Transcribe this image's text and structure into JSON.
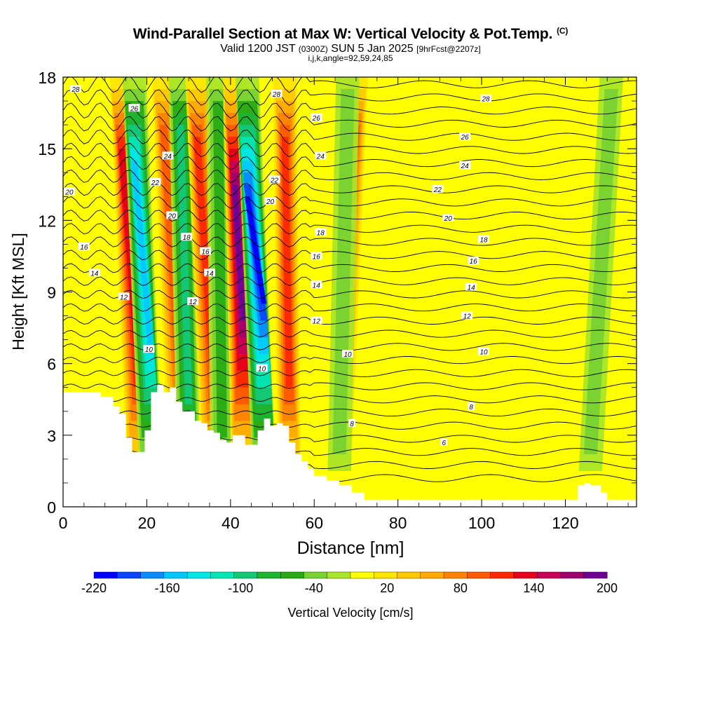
{
  "header": {
    "title": "Wind-Parallel Section at Max W: Vertical Velocity & Pot.Temp.",
    "copyright": "(C)",
    "valid_main": "Valid 1200 JST",
    "valid_utc": "(0300Z)",
    "valid_date": "SUN 5 Jan 2025",
    "forecast": "[9hrFcst@2207z]",
    "indices": "i,j,k,angle=92,59,24,85"
  },
  "chart_data": {
    "type": "heatmap",
    "xlabel": "Distance [nm]",
    "ylabel": "Height [Kft MSL]",
    "xlim": [
      0,
      137
    ],
    "ylim": [
      0,
      18
    ],
    "x_ticks": [
      0,
      20,
      40,
      60,
      80,
      100,
      120
    ],
    "y_ticks": [
      0,
      3,
      6,
      9,
      12,
      15,
      18
    ],
    "colorbar": {
      "label": "Vertical Velocity [cm/s]",
      "min": -220,
      "max": 200,
      "step": 20,
      "tick_labels": [
        -220,
        -160,
        -100,
        -40,
        20,
        80,
        140,
        200
      ],
      "colors": [
        "#0000ff",
        "#0a46ff",
        "#0a8cff",
        "#00c8ff",
        "#00e6e6",
        "#00e6b4",
        "#14c878",
        "#1eb432",
        "#28aa14",
        "#78d232",
        "#aae628",
        "#ffff00",
        "#ffe600",
        "#ffc800",
        "#ffaa00",
        "#ff8200",
        "#ff5a00",
        "#ff2800",
        "#e6001e",
        "#c8005a",
        "#a0006e",
        "#6e0096"
      ]
    },
    "vertical_velocity_features": [
      {
        "x": 15,
        "max": 140,
        "x_top": 14,
        "x_bottom": 18
      },
      {
        "x": 19,
        "max": -160,
        "x_top": 17,
        "x_bottom": 21
      },
      {
        "x": 26,
        "max": 100,
        "x_top": 24,
        "x_bottom": 28
      },
      {
        "x": 29,
        "max": -100,
        "x_top": 28,
        "x_bottom": 30
      },
      {
        "x": 33,
        "max": 120,
        "x_top": 32,
        "x_bottom": 36
      },
      {
        "x": 38,
        "max": -60,
        "x_top": 37,
        "x_bottom": 38
      },
      {
        "x": 41,
        "max": 200,
        "x_top": 41,
        "x_bottom": 43
      },
      {
        "x": 45,
        "max": -220,
        "x_top": 44,
        "x_bottom": 48
      },
      {
        "x": 53,
        "max": 120,
        "x_top": 53,
        "x_bottom": 54
      },
      {
        "x": 70,
        "max": 100,
        "x_top": 70,
        "x_bottom": 66
      },
      {
        "x": 67,
        "max": -40,
        "x_top": 68,
        "x_bottom": 66
      },
      {
        "x": 128,
        "max": -40,
        "x_top": 131,
        "x_bottom": 126
      }
    ],
    "terrain_height_kft": {
      "x": [
        0,
        7.5,
        9,
        12,
        13.5,
        15,
        16.5,
        18,
        19.5,
        21,
        22.5,
        24,
        25.5,
        27,
        28.5,
        30,
        31.5,
        33,
        34.5,
        36,
        37.5,
        39,
        40.5,
        42,
        43.5,
        45,
        46.5,
        48,
        49.5,
        51,
        52.5,
        54,
        55.5,
        57,
        58.5,
        60,
        63,
        66,
        69,
        72,
        75,
        80,
        90,
        100,
        110,
        120,
        123,
        124.5,
        126,
        128.5,
        130,
        137
      ],
      "y": [
        4.8,
        4.8,
        4.6,
        4.2,
        3.9,
        2.9,
        2.3,
        2.3,
        3.2,
        4.8,
        5.1,
        4.8,
        5.0,
        4.4,
        4.0,
        4.0,
        3.6,
        3.5,
        3.2,
        3.1,
        2.8,
        2.7,
        3.0,
        3.0,
        2.6,
        2.6,
        3.2,
        3.7,
        3.4,
        3.5,
        3.4,
        2.7,
        2.2,
        1.9,
        1.6,
        1.3,
        1.1,
        0.9,
        0.6,
        0.3,
        0.3,
        0.3,
        0.3,
        0.3,
        0.3,
        0.3,
        0.9,
        1.0,
        0.9,
        0.6,
        0.3,
        0.3
      ]
    },
    "contour_labels": [
      {
        "x": 3,
        "y": 17.5,
        "text": "28"
      },
      {
        "x": 17,
        "y": 16.7,
        "text": "26"
      },
      {
        "x": 25,
        "y": 14.7,
        "text": "24"
      },
      {
        "x": 22,
        "y": 13.6,
        "text": "22"
      },
      {
        "x": 1.5,
        "y": 13.2,
        "text": "20"
      },
      {
        "x": 26,
        "y": 12.2,
        "text": "20"
      },
      {
        "x": 29.5,
        "y": 11.3,
        "text": "18"
      },
      {
        "x": 5,
        "y": 10.9,
        "text": "16"
      },
      {
        "x": 34,
        "y": 10.7,
        "text": "16"
      },
      {
        "x": 7.5,
        "y": 9.8,
        "text": "14"
      },
      {
        "x": 35,
        "y": 9.8,
        "text": "14"
      },
      {
        "x": 14.5,
        "y": 8.8,
        "text": "12"
      },
      {
        "x": 31,
        "y": 8.6,
        "text": "12"
      },
      {
        "x": 20.5,
        "y": 6.6,
        "text": "10"
      },
      {
        "x": 47.5,
        "y": 5.8,
        "text": "10"
      },
      {
        "x": 51,
        "y": 17.3,
        "text": "28"
      },
      {
        "x": 60.5,
        "y": 16.3,
        "text": "26"
      },
      {
        "x": 61.5,
        "y": 14.7,
        "text": "24"
      },
      {
        "x": 50.5,
        "y": 13.7,
        "text": "22"
      },
      {
        "x": 49.5,
        "y": 12.8,
        "text": "20"
      },
      {
        "x": 61.5,
        "y": 11.5,
        "text": "18"
      },
      {
        "x": 60.5,
        "y": 10.5,
        "text": "16"
      },
      {
        "x": 60.5,
        "y": 9.3,
        "text": "14"
      },
      {
        "x": 60.5,
        "y": 7.8,
        "text": "12"
      },
      {
        "x": 68,
        "y": 6.4,
        "text": "10"
      },
      {
        "x": 69,
        "y": 3.5,
        "text": "8"
      },
      {
        "x": 101,
        "y": 17.1,
        "text": "28"
      },
      {
        "x": 96,
        "y": 15.5,
        "text": "26"
      },
      {
        "x": 96,
        "y": 14.3,
        "text": "24"
      },
      {
        "x": 89.5,
        "y": 13.3,
        "text": "22"
      },
      {
        "x": 92,
        "y": 12.1,
        "text": "20"
      },
      {
        "x": 100.5,
        "y": 11.2,
        "text": "18"
      },
      {
        "x": 98,
        "y": 10.3,
        "text": "16"
      },
      {
        "x": 97.5,
        "y": 9.2,
        "text": "14"
      },
      {
        "x": 96.5,
        "y": 8.0,
        "text": "12"
      },
      {
        "x": 100.5,
        "y": 6.5,
        "text": "10"
      },
      {
        "x": 97.5,
        "y": 4.2,
        "text": "8"
      },
      {
        "x": 91,
        "y": 2.7,
        "text": "6"
      }
    ]
  }
}
